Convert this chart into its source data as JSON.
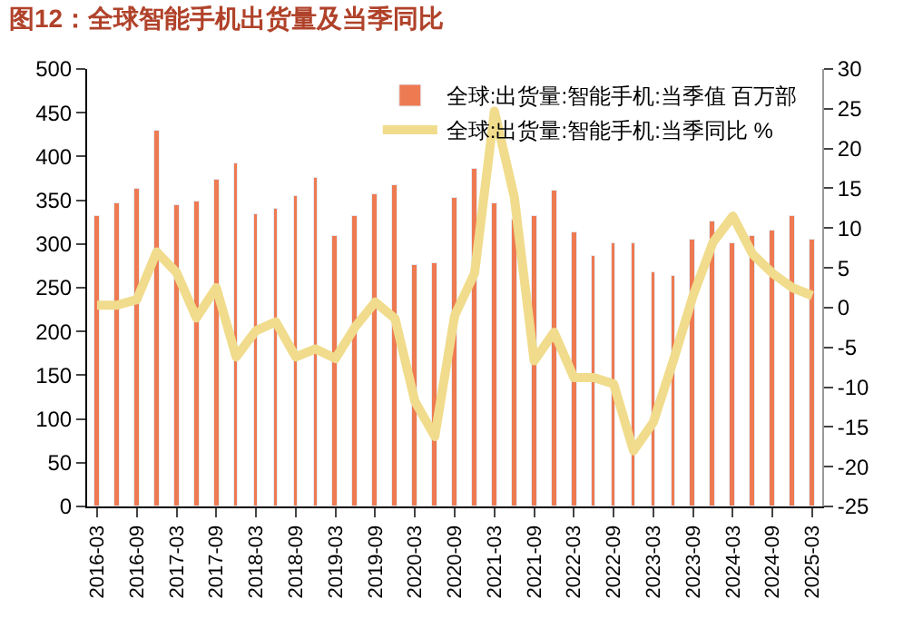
{
  "chart_data": {
    "type": "bar",
    "title": "图12：全球智能手机出货量及当季同比",
    "categories": [
      "2016-03",
      null,
      "2016-09",
      null,
      "2017-03",
      null,
      "2017-09",
      null,
      "2018-03",
      null,
      "2018-09",
      null,
      "2019-03",
      null,
      "2019-09",
      null,
      "2020-03",
      null,
      "2020-09",
      null,
      "2021-03",
      null,
      "2021-09",
      null,
      "2022-03",
      null,
      "2022-09",
      null,
      "2023-03",
      null,
      "2023-09",
      null,
      "2024-03",
      null,
      "2024-09",
      null,
      "2025-03"
    ],
    "series": [
      {
        "name": "全球:出货量:智能手机:当季值 百万部",
        "color": "#ee7a52",
        "values": [
          332,
          346,
          363,
          430,
          344,
          348,
          373,
          393,
          335,
          341,
          354,
          375,
          310,
          332,
          357,
          368,
          276,
          277,
          353,
          386,
          346,
          328,
          331,
          362,
          313,
          286,
          301,
          300,
          268,
          264,
          304,
          326,
          300,
          310,
          316,
          332,
          305
        ]
      },
      {
        "name": "全球:出货量:智能手机:当季同比 %",
        "type": "line",
        "axis": "y2",
        "color": "#f0dc8c",
        "values": [
          0.3,
          0.3,
          1,
          7,
          4.4,
          -1.3,
          2.5,
          -6.2,
          -2.9,
          -1.8,
          -6.2,
          -5.2,
          -6.4,
          -2.4,
          0.7,
          -1.4,
          -11.8,
          -16.2,
          -1.0,
          4.3,
          24.7,
          13.9,
          -6.7,
          -3.1,
          -8.8,
          -8.8,
          -9.6,
          -18,
          -14.4,
          -6.7,
          1.5,
          8.2,
          11.5,
          6.7,
          4.3,
          2.5,
          1.5
        ]
      }
    ],
    "ylim": [
      0,
      500
    ],
    "yticks": [
      0,
      50,
      100,
      150,
      200,
      250,
      300,
      350,
      400,
      450,
      500
    ],
    "y2lim": [
      -25,
      30
    ],
    "y2ticks": [
      -25,
      -20,
      -15,
      -10,
      -5,
      0,
      5,
      10,
      15,
      20,
      25,
      30
    ],
    "legend": "top right",
    "marker": "none",
    "line_style": "solid"
  }
}
